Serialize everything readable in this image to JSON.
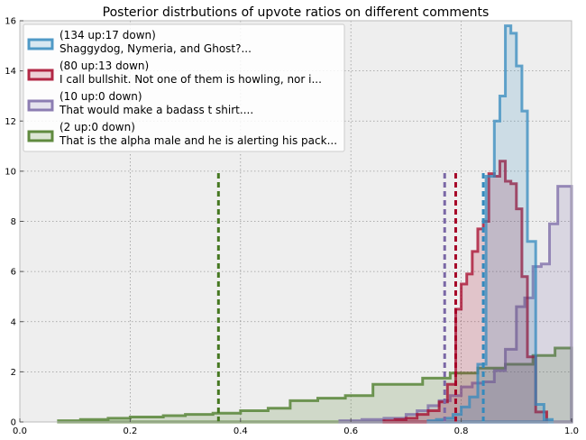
{
  "chart_data": {
    "type": "step-histogram",
    "title": "Posterior distrbutions of upvote ratios on different comments",
    "xlabel": "",
    "ylabel": "",
    "xlim": [
      0.0,
      1.0
    ],
    "ylim": [
      0,
      16
    ],
    "xticks": [
      "0.0",
      "0.2",
      "0.4",
      "0.6",
      "0.8",
      "1.0"
    ],
    "yticks": [
      "0",
      "2",
      "4",
      "6",
      "8",
      "10",
      "12",
      "14",
      "16"
    ],
    "grid": true,
    "legend_position": "upper left",
    "colors": {
      "background": "#eeeeee",
      "grid": "#999999"
    },
    "series": [
      {
        "name": "(134 up:17 down)\nShaggydog, Nymeria, and Ghost?...",
        "color": "#348abd",
        "mean_line": 0.84,
        "bin_edges": [
          0.74,
          0.755,
          0.77,
          0.785,
          0.8,
          0.815,
          0.83,
          0.845,
          0.86,
          0.87,
          0.88,
          0.89,
          0.9,
          0.91,
          0.92,
          0.935,
          0.95,
          0.965
        ],
        "heights": [
          0.05,
          0.1,
          0.15,
          0.3,
          0.6,
          1.0,
          2.3,
          9.8,
          12.0,
          13.0,
          15.8,
          15.5,
          14.2,
          12.4,
          7.2,
          0.7,
          0.1
        ]
      },
      {
        "name": "(80 up:13 down)\nI call bullshit. Not one of them is howling, nor i...",
        "color": "#a60628",
        "mean_line": 0.79,
        "bin_edges": [
          0.66,
          0.68,
          0.7,
          0.72,
          0.74,
          0.76,
          0.775,
          0.79,
          0.8,
          0.81,
          0.82,
          0.83,
          0.84,
          0.85,
          0.86,
          0.87,
          0.88,
          0.89,
          0.9,
          0.91,
          0.92,
          0.935,
          0.955
        ],
        "heights": [
          0.05,
          0.1,
          0.15,
          0.3,
          0.45,
          0.8,
          1.5,
          4.5,
          5.5,
          5.9,
          6.8,
          7.7,
          8.0,
          9.9,
          9.8,
          10.4,
          9.6,
          9.5,
          8.5,
          5.8,
          2.6,
          0.4
        ]
      },
      {
        "name": "(10 up:0 down)\nThat would make a badass t shirt....",
        "color": "#7a68a6",
        "mean_line": 0.77,
        "bin_edges": [
          0.58,
          0.62,
          0.66,
          0.7,
          0.72,
          0.74,
          0.76,
          0.78,
          0.8,
          0.82,
          0.84,
          0.86,
          0.88,
          0.9,
          0.915,
          0.93,
          0.945,
          0.96,
          0.975,
          1.0
        ],
        "heights": [
          0.05,
          0.1,
          0.15,
          0.3,
          0.45,
          0.65,
          0.85,
          1.05,
          1.4,
          1.55,
          1.6,
          2.05,
          2.9,
          4.6,
          4.95,
          6.2,
          6.3,
          7.9,
          9.4
        ]
      },
      {
        "name": "(2 up:0 down)\nThat is the alpha male and he is alerting his pack...",
        "color": "#467821",
        "mean_line": 0.36,
        "bin_edges": [
          0.07,
          0.11,
          0.16,
          0.2,
          0.26,
          0.3,
          0.35,
          0.4,
          0.45,
          0.49,
          0.54,
          0.59,
          0.64,
          0.68,
          0.73,
          0.78,
          0.83,
          0.88,
          0.93,
          0.97,
          1.0
        ],
        "heights": [
          0.05,
          0.1,
          0.15,
          0.2,
          0.25,
          0.3,
          0.35,
          0.45,
          0.55,
          0.85,
          0.95,
          1.05,
          1.5,
          1.5,
          1.75,
          1.95,
          2.15,
          2.3,
          2.65,
          2.95
        ]
      }
    ]
  }
}
